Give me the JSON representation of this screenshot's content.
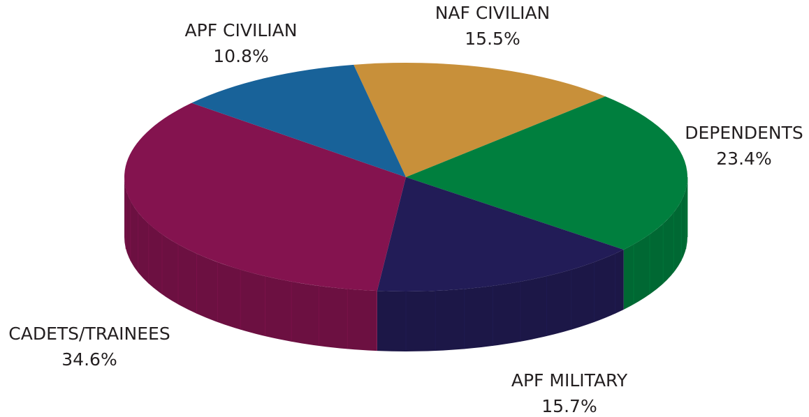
{
  "chart_data": {
    "type": "pie",
    "categories": [
      "NAF CIVILIAN",
      "DEPENDENTS",
      "APF MILITARY",
      "CADETS/TRAINEES",
      "APF CIVILIAN"
    ],
    "values": [
      15.5,
      23.4,
      15.7,
      34.6,
      10.8
    ],
    "value_labels": [
      "15.5%",
      "23.4%",
      "15.7%",
      "34.6%",
      "10.8%"
    ],
    "colors": [
      "#c8903a",
      "#007f3e",
      "#221c57",
      "#84134f",
      "#186299"
    ]
  }
}
